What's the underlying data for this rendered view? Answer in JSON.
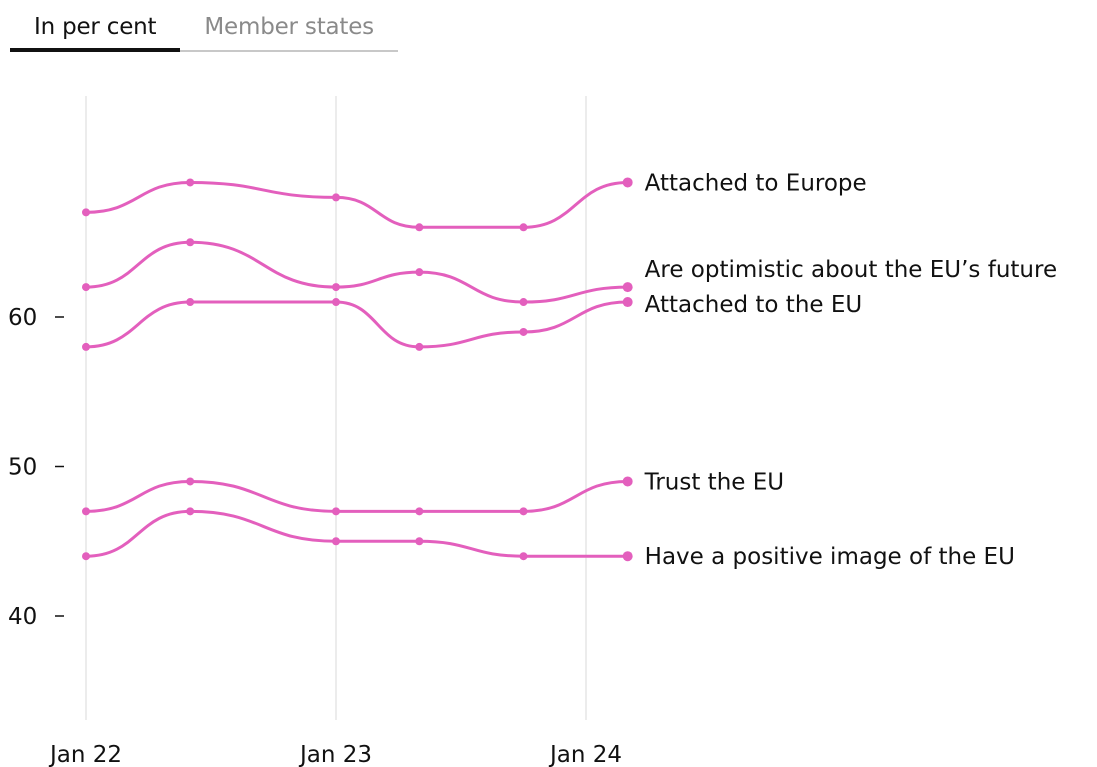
{
  "tabs": [
    {
      "label": "In per cent",
      "active": true
    },
    {
      "label": "Member states",
      "active": false
    }
  ],
  "chart_data": {
    "type": "line",
    "x": [
      "2022-01",
      "2022-06",
      "2023-01",
      "2023-05",
      "2023-10",
      "2024-03"
    ],
    "x_ticks": [
      "Jan 22",
      "Jan 23",
      "Jan 24"
    ],
    "y_ticks": [
      40,
      50,
      60
    ],
    "ylim": [
      33,
      75
    ],
    "grid": "vertical",
    "line_color": "#e35fbd",
    "series": [
      {
        "name": "Attached to Europe",
        "values": [
          67,
          69,
          68,
          66,
          66,
          69
        ]
      },
      {
        "name": "Are optimistic about the EU’s future",
        "values": [
          62,
          65,
          62,
          63,
          61,
          62
        ]
      },
      {
        "name": "Attached to the EU",
        "values": [
          58,
          61,
          61,
          58,
          59,
          61
        ]
      },
      {
        "name": "Trust the EU",
        "values": [
          47,
          49,
          47,
          47,
          47,
          49
        ]
      },
      {
        "name": "Have a positive image of the EU",
        "values": [
          44,
          47,
          45,
          45,
          44,
          44
        ]
      }
    ]
  }
}
